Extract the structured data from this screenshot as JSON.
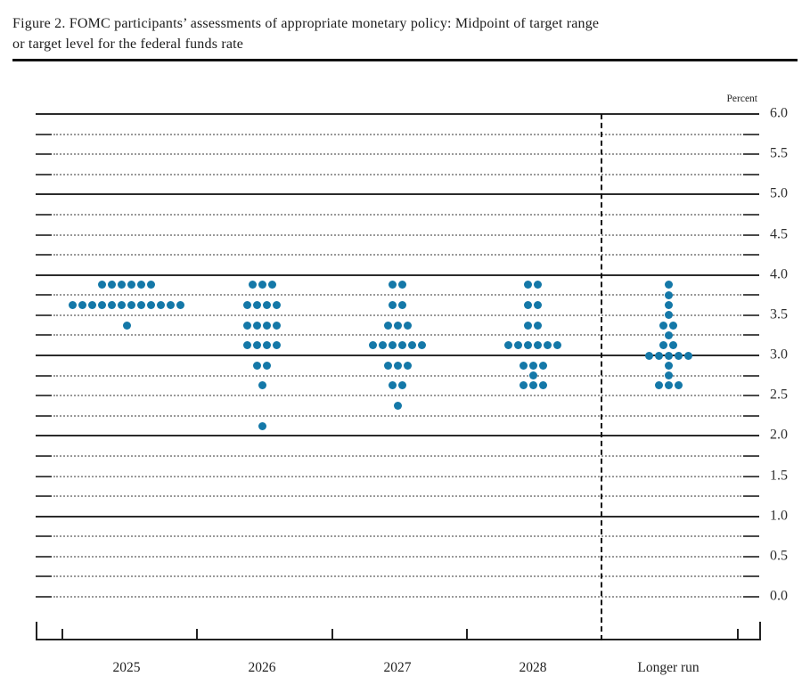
{
  "title": {
    "line1": "Figure 2. FOMC participants’ assessments of appropriate monetary policy: Midpoint of target range",
    "line2": "or target level for the federal funds rate"
  },
  "chart": {
    "unit_label": "Percent"
  },
  "chart_data": {
    "type": "scatter",
    "title": "FOMC participants’ assessments of appropriate monetary policy: Midpoint of target range or target level for the federal funds rate",
    "ylabel": "Percent",
    "ylim": [
      0.0,
      6.0
    ],
    "gridline_step": 0.25,
    "solid_gridlines": [
      6.0,
      5.0,
      4.0,
      3.0,
      2.0,
      1.0
    ],
    "dotted_gridlines_include_zero": true,
    "y_axis_labels": [
      "6.0",
      "5.5",
      "5.0",
      "4.5",
      "4.0",
      "3.5",
      "3.0",
      "2.5",
      "2.0",
      "1.5",
      "1.0",
      "0.5",
      "0.0"
    ],
    "legend_position": "none",
    "grid": true,
    "dot_color": "#1478a8",
    "categories": [
      "2025",
      "2026",
      "2027",
      "2028",
      "Longer run"
    ],
    "series": [
      {
        "name": "2025",
        "dots": [
          {
            "rate": 3.875,
            "count": 6
          },
          {
            "rate": 3.625,
            "count": 12
          },
          {
            "rate": 3.375,
            "count": 1
          }
        ]
      },
      {
        "name": "2026",
        "dots": [
          {
            "rate": 3.875,
            "count": 3
          },
          {
            "rate": 3.625,
            "count": 4
          },
          {
            "rate": 3.375,
            "count": 4
          },
          {
            "rate": 3.125,
            "count": 4
          },
          {
            "rate": 2.875,
            "count": 2
          },
          {
            "rate": 2.625,
            "count": 1
          },
          {
            "rate": 2.125,
            "count": 1
          }
        ]
      },
      {
        "name": "2027",
        "dots": [
          {
            "rate": 3.875,
            "count": 2
          },
          {
            "rate": 3.625,
            "count": 2
          },
          {
            "rate": 3.375,
            "count": 3
          },
          {
            "rate": 3.125,
            "count": 6
          },
          {
            "rate": 2.875,
            "count": 3
          },
          {
            "rate": 2.625,
            "count": 2
          },
          {
            "rate": 2.375,
            "count": 1
          }
        ]
      },
      {
        "name": "2028",
        "dots": [
          {
            "rate": 3.875,
            "count": 2
          },
          {
            "rate": 3.625,
            "count": 2
          },
          {
            "rate": 3.375,
            "count": 2
          },
          {
            "rate": 3.125,
            "count": 6
          },
          {
            "rate": 2.875,
            "count": 3
          },
          {
            "rate": 2.75,
            "count": 1
          },
          {
            "rate": 2.625,
            "count": 3
          }
        ]
      },
      {
        "name": "Longer run",
        "dots": [
          {
            "rate": 3.875,
            "count": 1
          },
          {
            "rate": 3.75,
            "count": 1
          },
          {
            "rate": 3.625,
            "count": 1
          },
          {
            "rate": 3.5,
            "count": 1
          },
          {
            "rate": 3.375,
            "count": 2
          },
          {
            "rate": 3.25,
            "count": 1
          },
          {
            "rate": 3.125,
            "count": 2
          },
          {
            "rate": 3.0,
            "count": 5
          },
          {
            "rate": 2.875,
            "count": 1
          },
          {
            "rate": 2.75,
            "count": 1
          },
          {
            "rate": 2.625,
            "count": 3
          }
        ]
      }
    ]
  }
}
